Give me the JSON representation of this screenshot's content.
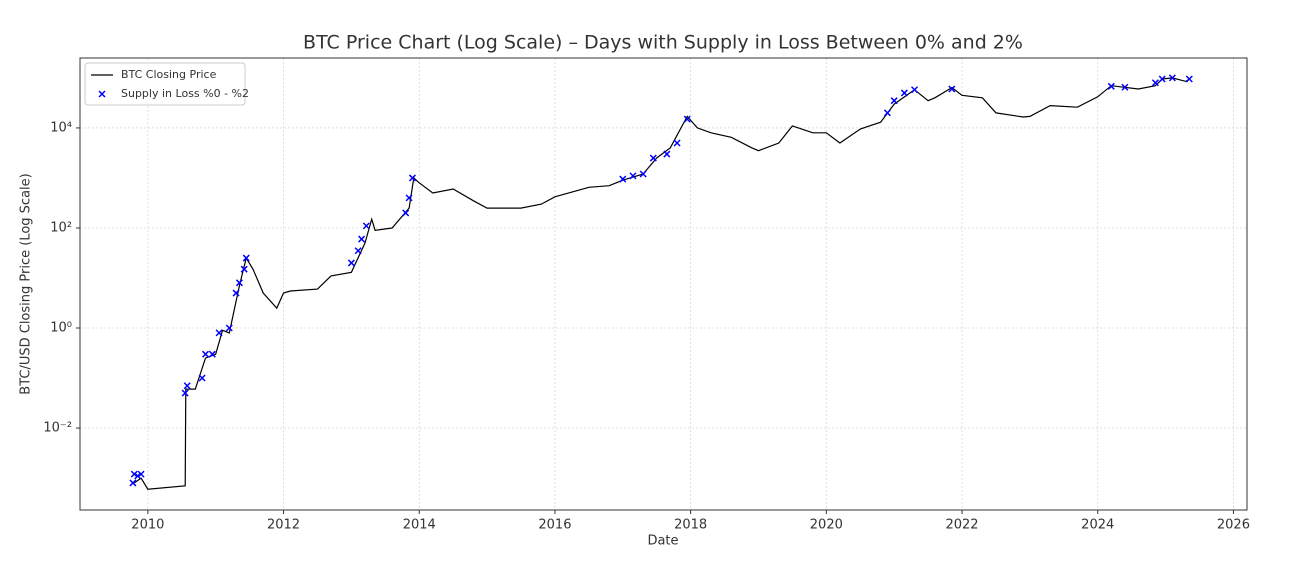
{
  "chart_data": {
    "type": "line",
    "title": "BTC Price Chart (Log Scale) – Days with Supply in Loss Between 0% and 2%",
    "xlabel": "Date",
    "ylabel": "BTC/USD Closing Price (Log Scale)",
    "yscale": "log",
    "grid": true,
    "legend": "upper left",
    "xlim": [
      2009.0,
      2026.2
    ],
    "xticks": [
      2010,
      2012,
      2014,
      2016,
      2018,
      2020,
      2022,
      2024,
      2026
    ],
    "ylim": [
      0.00023,
      250000
    ],
    "yticks": [
      {
        "value": 0.01,
        "label": "10⁻²"
      },
      {
        "value": 1,
        "label": "10⁰"
      },
      {
        "value": 100,
        "label": "10²"
      },
      {
        "value": 10000,
        "label": "10⁴"
      }
    ],
    "series": [
      {
        "name": "BTC Closing Price",
        "type": "line",
        "color": "#000000",
        "x": [
          2009.8,
          2009.9,
          2010.0,
          2010.55,
          2010.56,
          2010.7,
          2010.85,
          2011.0,
          2011.1,
          2011.2,
          2011.35,
          2011.45,
          2011.55,
          2011.7,
          2011.9,
          2012.0,
          2012.1,
          2012.5,
          2012.7,
          2013.0,
          2013.2,
          2013.3,
          2013.35,
          2013.6,
          2013.85,
          2013.92,
          2014.0,
          2014.2,
          2014.5,
          2014.8,
          2015.0,
          2015.2,
          2015.5,
          2015.8,
          2016.0,
          2016.5,
          2016.8,
          2017.0,
          2017.3,
          2017.5,
          2017.7,
          2017.95,
          2018.1,
          2018.3,
          2018.6,
          2018.9,
          2019.0,
          2019.3,
          2019.5,
          2019.8,
          2020.0,
          2020.2,
          2020.5,
          2020.8,
          2021.0,
          2021.3,
          2021.5,
          2021.6,
          2021.85,
          2022.0,
          2022.3,
          2022.5,
          2022.9,
          2023.0,
          2023.3,
          2023.7,
          2024.0,
          2024.2,
          2024.6,
          2024.85,
          2024.95,
          2025.1,
          2025.3,
          2025.35
        ],
        "values": [
          0.0008,
          0.001,
          0.0006,
          0.0007,
          0.06,
          0.06,
          0.25,
          0.3,
          0.9,
          0.8,
          7,
          25,
          15,
          5,
          2.5,
          5,
          5.5,
          6,
          11,
          13,
          50,
          150,
          90,
          100,
          250,
          1000,
          800,
          500,
          600,
          350,
          250,
          250,
          250,
          300,
          420,
          650,
          700,
          900,
          1200,
          2500,
          4000,
          17000,
          10000,
          8000,
          6500,
          4000,
          3500,
          5000,
          11000,
          8000,
          8000,
          5000,
          9500,
          13000,
          30000,
          58000,
          35000,
          40000,
          64000,
          45000,
          40000,
          20000,
          16500,
          17000,
          28000,
          26000,
          42000,
          70000,
          60000,
          70000,
          95000,
          100000,
          85000,
          95000
        ]
      },
      {
        "name": "Supply in Loss %0 - %2",
        "type": "scatter",
        "color": "#0000ff",
        "x": [
          2009.78,
          2009.8,
          2009.85,
          2009.9,
          2010.55,
          2010.58,
          2010.8,
          2010.85,
          2010.95,
          2011.05,
          2011.2,
          2011.3,
          2011.35,
          2011.42,
          2011.45,
          2013.0,
          2013.1,
          2013.15,
          2013.22,
          2013.8,
          2013.85,
          2013.9,
          2017.0,
          2017.15,
          2017.3,
          2017.45,
          2017.65,
          2017.8,
          2017.95,
          2020.9,
          2021.0,
          2021.15,
          2021.3,
          2021.85,
          2024.2,
          2024.4,
          2024.85,
          2024.95,
          2025.1,
          2025.35
        ],
        "values": [
          0.0008,
          0.0012,
          0.0011,
          0.0012,
          0.05,
          0.07,
          0.1,
          0.3,
          0.3,
          0.8,
          1,
          5,
          8,
          15,
          25,
          20,
          35,
          60,
          110,
          200,
          400,
          1000,
          950,
          1100,
          1200,
          2500,
          3000,
          5000,
          15000,
          20000,
          35000,
          50000,
          58000,
          60000,
          68000,
          65000,
          80000,
          95000,
          100000,
          95000
        ]
      }
    ]
  }
}
